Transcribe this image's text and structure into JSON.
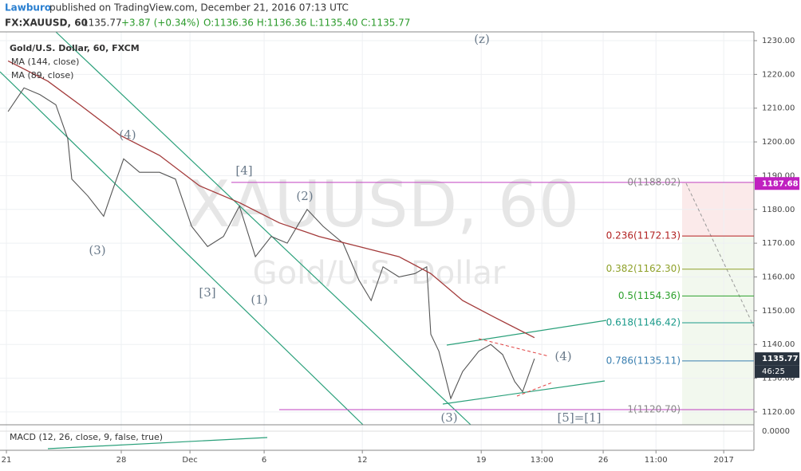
{
  "header": {
    "author": "Lawburo",
    "published": "published on TradingView.com, December 21, 2016 07:13 UTC",
    "symbol": "FX:XAUUSD, 60",
    "last": "1135.77",
    "change": "+3.87 (+0.34%)",
    "ohlc": "O:1136.36 H:1136.36 L:1135.40 C:1135.77"
  },
  "chart_data": {
    "type": "line",
    "title": "Gold/U.S. Dollar, 60, FXCM",
    "watermark": "XAUUSD, 60",
    "watermark_sub": "Gold/U.S. Dollar",
    "series": [
      {
        "name": "Gold/U.S. Dollar, 60, FXCM",
        "color": "#555555",
        "x": [
          0.07,
          0.74,
          1.41,
          2.08,
          2.58,
          2.75,
          3.42,
          4.09,
          4.43,
          4.93,
          5.6,
          6.44,
          7.11,
          7.79,
          8.46,
          9.13,
          9.8,
          10.47,
          11.14,
          11.81,
          12.65,
          13.32,
          14.16,
          14.83,
          15.34,
          15.84,
          16.51,
          17.18,
          17.68,
          17.85,
          18.19,
          18.69,
          19.19,
          19.87,
          20.37,
          20.87,
          21.38,
          21.71,
          22.21
        ],
        "values": [
          1209,
          1216,
          1214,
          1211,
          1201,
          1189,
          1184,
          1178,
          1185,
          1195,
          1191,
          1191,
          1189,
          1175,
          1169,
          1172,
          1181,
          1166,
          1172,
          1170,
          1180,
          1175,
          1170,
          1159,
          1153,
          1163,
          1160,
          1161,
          1163,
          1143,
          1138,
          1124,
          1132,
          1138,
          1140,
          1137,
          1129,
          1126,
          1135.77
        ]
      },
      {
        "name": "MA (144, close)",
        "color": "#a33a3a",
        "x": [
          0.07,
          1.74,
          3.09,
          4.77,
          6.44,
          8.12,
          9.8,
          11.48,
          13.15,
          14.83,
          16.51,
          17.85,
          19.19,
          20.54,
          22.21
        ],
        "values": [
          1224,
          1218,
          1211,
          1202,
          1196,
          1187,
          1182,
          1176,
          1172,
          1169,
          1166,
          1161,
          1153,
          1148,
          1142
        ]
      },
      {
        "name": "MA (89, close)",
        "color": "#a33a3a",
        "x": [],
        "values": []
      }
    ],
    "fib_levels": [
      {
        "label": "0(1188.02)",
        "value": 1188.02,
        "color": "#888888"
      },
      {
        "label": "0.236(1172.13)",
        "value": 1172.13,
        "color": "#b22222"
      },
      {
        "label": "0.382(1162.30)",
        "value": 1162.3,
        "color": "#8fa12a"
      },
      {
        "label": "0.5(1154.36)",
        "value": 1154.36,
        "color": "#2ca02c"
      },
      {
        "label": "0.618(1146.42)",
        "value": 1146.42,
        "color": "#1a9a8a"
      },
      {
        "label": "0.786(1135.11)",
        "value": 1135.11,
        "color": "#3a7fb0"
      },
      {
        "label": "1(1120.70)",
        "value": 1120.7,
        "color": "#888888"
      }
    ],
    "annotations": [
      "(z)",
      "(4)",
      "(3)",
      "[4]",
      "(2)",
      "[3]",
      "(1)",
      "(3)",
      "(4)",
      "[5]=[1]"
    ],
    "price_labels": [
      {
        "value": 1187.68,
        "label": "1187.68"
      },
      {
        "value": 1135.77,
        "label": "1135.77"
      }
    ],
    "countdown": "46:25",
    "xlim": [
      -0.27,
      31.44
    ],
    "xticks": [
      {
        "value": 0,
        "label": "21"
      },
      {
        "value": 4.83,
        "label": "28"
      },
      {
        "value": 7.72,
        "label": "Dec"
      },
      {
        "value": 10.84,
        "label": "6"
      },
      {
        "value": 14.97,
        "label": "12"
      },
      {
        "value": 19.97,
        "label": "19"
      },
      {
        "value": 22.52,
        "label": "13:00"
      },
      {
        "value": 25.1,
        "label": "26"
      },
      {
        "value": 27.32,
        "label": "11:00"
      },
      {
        "value": 30.17,
        "label": "2017"
      }
    ],
    "ylim": [
      1116.2,
      1232.6
    ],
    "yticks": [
      {
        "value": 1120,
        "label": "1120.00"
      },
      {
        "value": 1130,
        "label": "1130.00"
      },
      {
        "value": 1140,
        "label": "1140.00"
      },
      {
        "value": 1150,
        "label": "1150.00"
      },
      {
        "value": 1160,
        "label": "1160.00"
      },
      {
        "value": 1170,
        "label": "1170.00"
      },
      {
        "value": 1180,
        "label": "1180.00"
      },
      {
        "value": 1190,
        "label": "1190.00"
      },
      {
        "value": 1200,
        "label": "1200.00"
      },
      {
        "value": 1210,
        "label": "1210.00"
      },
      {
        "value": 1220,
        "label": "1220.00"
      },
      {
        "value": 1230,
        "label": "1230.00"
      }
    ],
    "grid": true,
    "macd": {
      "title": "MACD (12, 26, close, 9, false, true)",
      "zero": {
        "value": 0,
        "label": "0.0000"
      }
    }
  }
}
